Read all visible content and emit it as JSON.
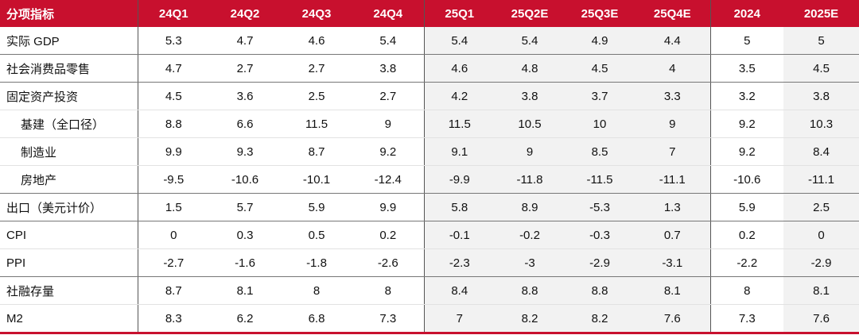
{
  "table": {
    "header": [
      "分项指标",
      "24Q1",
      "24Q2",
      "24Q3",
      "24Q4",
      "25Q1",
      "25Q2E",
      "25Q3E",
      "25Q4E",
      "2024",
      "2025E"
    ],
    "rows": [
      [
        "实际 GDP",
        5.3,
        4.7,
        4.6,
        5.4,
        5.4,
        5.4,
        4.9,
        4.4,
        5,
        5
      ],
      [
        "社会消费品零售",
        4.7,
        2.7,
        2.7,
        3.8,
        4.6,
        4.8,
        4.5,
        4,
        3.5,
        4.5
      ],
      [
        "固定资产投资",
        4.5,
        3.6,
        2.5,
        2.7,
        4.2,
        3.8,
        3.7,
        3.3,
        3.2,
        3.8
      ],
      [
        "基建（全口径）",
        8.8,
        6.6,
        11.5,
        9,
        11.5,
        10.5,
        10,
        9,
        9.2,
        10.3
      ],
      [
        "制造业",
        9.9,
        9.3,
        8.7,
        9.2,
        9.1,
        9,
        8.5,
        7,
        9.2,
        8.4
      ],
      [
        "房地产",
        -9.5,
        -10.6,
        -10.1,
        -12.4,
        -9.9,
        -11.8,
        -11.5,
        -11.1,
        -10.6,
        -11.1
      ],
      [
        "出口（美元计价）",
        1.5,
        5.7,
        5.9,
        9.9,
        5.8,
        8.9,
        -5.3,
        1.3,
        5.9,
        2.5
      ],
      [
        "CPI",
        0,
        0.3,
        0.5,
        0.2,
        -0.1,
        -0.2,
        -0.3,
        0.7,
        0.2,
        0
      ],
      [
        "PPI",
        -2.7,
        -1.6,
        -1.8,
        -2.6,
        -2.3,
        -3,
        -2.9,
        -3.1,
        -2.2,
        -2.9
      ],
      [
        "社融存量",
        8.7,
        8.1,
        8,
        8,
        8.4,
        8.8,
        8.8,
        8.1,
        8,
        8.1
      ],
      [
        "M2",
        8.3,
        6.2,
        6.8,
        7.3,
        7,
        8.2,
        8.2,
        7.6,
        7.3,
        7.6
      ]
    ]
  }
}
